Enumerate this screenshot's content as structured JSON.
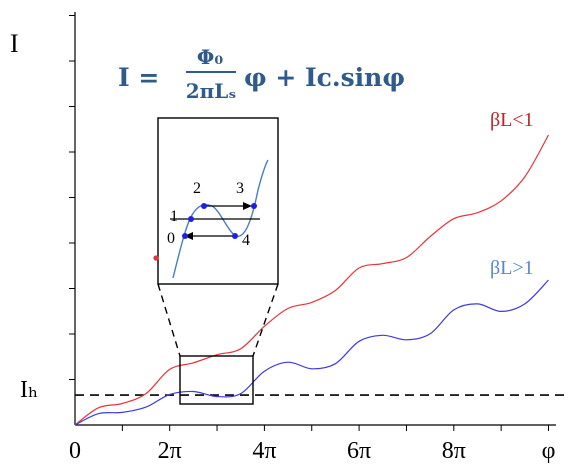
{
  "chart_data": {
    "type": "line",
    "xlabel": "φ",
    "ylabel": "I",
    "x_range": [
      0,
      10.8
    ],
    "y_range": [
      0,
      10
    ],
    "xticks": [
      {
        "value": 0,
        "label": "0"
      },
      {
        "value": 2,
        "label": "2π"
      },
      {
        "value": 4,
        "label": "4π"
      },
      {
        "value": 6,
        "label": "6π"
      },
      {
        "value": 8,
        "label": "8π"
      },
      {
        "value": 10,
        "label": "φ"
      }
    ],
    "formula": {
      "lhs": "I = ",
      "numerator": "Φ₀",
      "denominator": "2πLₛ",
      "rhs": "φ + Iᴄ.sinφ"
    },
    "threshold": {
      "label": "Iₕ",
      "value": 1.0
    },
    "series": [
      {
        "name": "βL<1",
        "color": "#e8333a",
        "x": [
          0,
          0.5,
          1,
          1.5,
          2,
          2.5,
          3,
          3.5,
          4,
          4.5,
          5,
          5.5,
          6,
          6.5,
          7,
          7.5,
          8,
          8.5,
          9,
          9.5,
          10
        ],
        "y": [
          0,
          0.58,
          0.72,
          1.05,
          1.86,
          2.08,
          2.35,
          2.55,
          3.3,
          3.9,
          4.1,
          4.5,
          5.25,
          5.4,
          5.6,
          6.3,
          6.9,
          7.1,
          7.5,
          8.3,
          9.7
        ]
      },
      {
        "name": "βL>1",
        "color": "#3b3bde",
        "x": [
          0,
          0.5,
          1,
          1.5,
          2,
          2.5,
          3,
          3.5,
          4,
          4.5,
          5,
          5.5,
          6,
          6.5,
          7,
          7.5,
          8,
          8.5,
          9,
          9.5,
          10
        ],
        "y": [
          0,
          0.38,
          0.42,
          0.6,
          1.02,
          1.12,
          0.95,
          1.05,
          1.8,
          2.1,
          1.88,
          2.05,
          2.8,
          3.0,
          2.85,
          3.05,
          3.85,
          4.05,
          3.8,
          4.05,
          4.85
        ]
      }
    ],
    "inset": {
      "points": [
        "0",
        "1",
        "2",
        "3",
        "4"
      ],
      "curve_color": "#4a7cc7",
      "point_color": "#1f1fe0",
      "arrow_color": "#000000"
    }
  }
}
